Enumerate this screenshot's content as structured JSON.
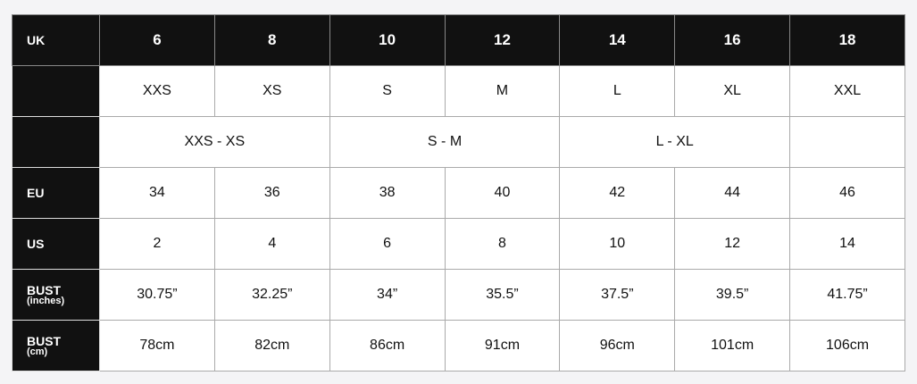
{
  "header": {
    "label": "UK",
    "sizes": [
      "6",
      "8",
      "10",
      "12",
      "14",
      "16",
      "18"
    ]
  },
  "letter_row": {
    "label": "",
    "values": [
      "XXS",
      "XS",
      "S",
      "M",
      "L",
      "XL",
      "XXL"
    ]
  },
  "range_row": {
    "label": "",
    "values": [
      "XXS - XS",
      "S - M",
      "L - XL",
      ""
    ]
  },
  "eu_row": {
    "label": "EU",
    "values": [
      "34",
      "36",
      "38",
      "40",
      "42",
      "44",
      "46"
    ]
  },
  "us_row": {
    "label": "US",
    "values": [
      "2",
      "4",
      "6",
      "8",
      "10",
      "12",
      "14"
    ]
  },
  "bust_in_row": {
    "label": "BUST",
    "sublabel": "(inches)",
    "values": [
      "30.75”",
      "32.25”",
      "34”",
      "35.5”",
      "37.5”",
      "39.5”",
      "41.75”"
    ]
  },
  "bust_cm_row": {
    "label": "BUST",
    "sublabel": "(cm)",
    "values": [
      "78cm",
      "82cm",
      "86cm",
      "91cm",
      "96cm",
      "101cm",
      "106cm"
    ]
  }
}
